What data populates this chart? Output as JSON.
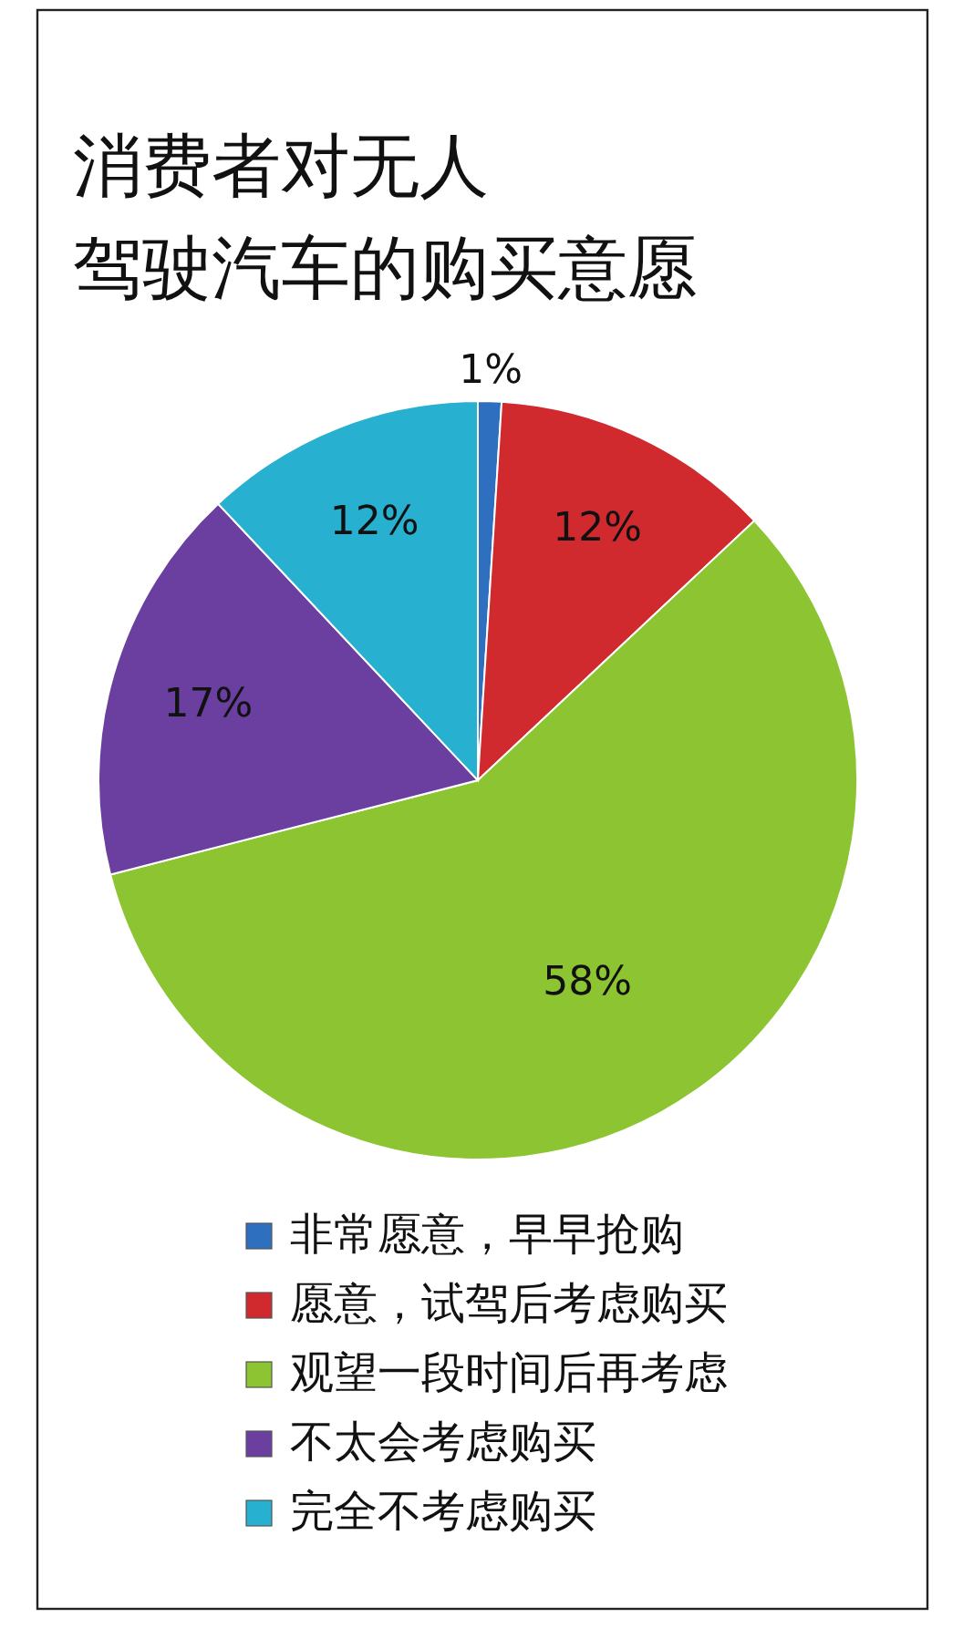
{
  "chart_data": {
    "type": "pie",
    "title": "消费者对无人驾驶汽车的购买意愿",
    "categories": [
      "非常愿意，早早抢购",
      "愿意，试驾后考虑购买",
      "观望一段时间后再考虑",
      "不太会考虑购买",
      "完全不考虑购买"
    ],
    "values": [
      1,
      12,
      58,
      17,
      12
    ],
    "colors": [
      "#2e6fc0",
      "#d02a2e",
      "#8cc432",
      "#6a3fa0",
      "#27b0cf"
    ],
    "value_labels": [
      "1%",
      "12%",
      "58%",
      "17%",
      "12%"
    ],
    "legend": "bottom"
  }
}
